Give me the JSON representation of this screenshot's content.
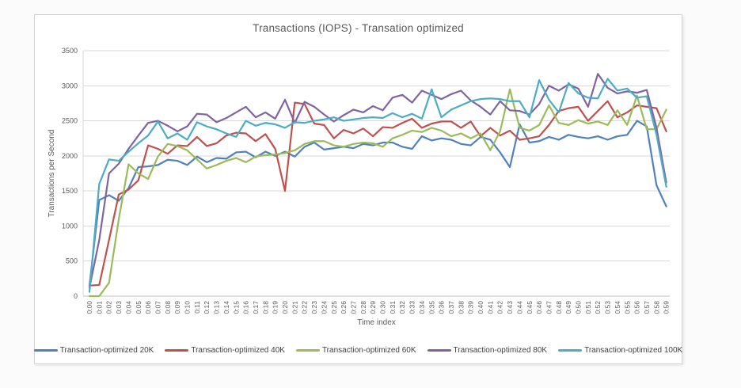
{
  "window": {
    "background": "#fbfbfb",
    "card_background": "#ffffff"
  },
  "palette": {
    "gridline": "#d9d9d9",
    "axis_line": "#bfbfbf",
    "text": "#595959",
    "legend_text": "#404040"
  },
  "chart_data": {
    "type": "line",
    "title": "Transactions (IOPS) - Transation optimized",
    "xlabel": "Time index",
    "ylabel": "Transactions per Second",
    "ylim": [
      0,
      3500
    ],
    "y_ticks": [
      0,
      500,
      1000,
      1500,
      2000,
      2500,
      3000,
      3500
    ],
    "grid": "horizontal-only",
    "legend_position": "bottom",
    "x_tick_rotation": -90,
    "categories": [
      "0:00",
      "0:01",
      "0:02",
      "0:03",
      "0:04",
      "0:05",
      "0:06",
      "0:07",
      "0:08",
      "0:09",
      "0:10",
      "0:11",
      "0:12",
      "0:13",
      "0:14",
      "0:15",
      "0:16",
      "0:17",
      "0:18",
      "0:19",
      "0:20",
      "0:21",
      "0:22",
      "0:23",
      "0:24",
      "0:25",
      "0:26",
      "0:27",
      "0:28",
      "0:29",
      "0:30",
      "0:31",
      "0:32",
      "0:33",
      "0:34",
      "0:35",
      "0:36",
      "0:37",
      "0:38",
      "0:39",
      "0:40",
      "0:41",
      "0:42",
      "0:43",
      "0:44",
      "0:45",
      "0:46",
      "0:47",
      "0:48",
      "0:49",
      "0:50",
      "0:51",
      "0:52",
      "0:53",
      "0:54",
      "0:55",
      "0:56",
      "0:57",
      "0:58",
      "0:59"
    ],
    "series": [
      {
        "name": "Transaction-optimized 20K",
        "color": "#4F81BD",
        "values": [
          150,
          1370,
          1440,
          1360,
          1540,
          1840,
          1850,
          1870,
          1945,
          1930,
          1870,
          1990,
          1910,
          1970,
          1960,
          2050,
          2060,
          1980,
          2060,
          2000,
          2060,
          1990,
          2130,
          2190,
          2090,
          2110,
          2130,
          2110,
          2170,
          2150,
          2190,
          2190,
          2130,
          2100,
          2280,
          2220,
          2250,
          2230,
          2170,
          2150,
          2270,
          2230,
          2050,
          1840,
          2450,
          2190,
          2210,
          2270,
          2230,
          2300,
          2270,
          2250,
          2280,
          2230,
          2280,
          2300,
          2500,
          2420,
          1580,
          1280
        ]
      },
      {
        "name": "Transaction-optimized 40K",
        "color": "#C0504D",
        "values": [
          150,
          160,
          800,
          1450,
          1520,
          1650,
          2150,
          2100,
          2030,
          2150,
          2140,
          2270,
          2140,
          2180,
          2290,
          2330,
          2320,
          2210,
          2310,
          2100,
          1500,
          2760,
          2740,
          2460,
          2440,
          2250,
          2370,
          2320,
          2390,
          2280,
          2410,
          2400,
          2470,
          2530,
          2400,
          2460,
          2490,
          2490,
          2400,
          2490,
          2280,
          2400,
          2290,
          2360,
          2230,
          2250,
          2280,
          2440,
          2640,
          2680,
          2700,
          2500,
          2640,
          2780,
          2550,
          2620,
          2720,
          2700,
          2680,
          2350
        ]
      },
      {
        "name": "Transaction-optimized 60K",
        "color": "#9BBB59",
        "values": [
          0,
          0,
          190,
          1100,
          1880,
          1750,
          1670,
          1990,
          2170,
          2140,
          2080,
          1950,
          1820,
          1870,
          1930,
          1970,
          1910,
          1990,
          2010,
          2020,
          2040,
          2080,
          2170,
          2210,
          2210,
          2150,
          2130,
          2170,
          2190,
          2180,
          2130,
          2250,
          2300,
          2360,
          2340,
          2400,
          2360,
          2280,
          2320,
          2250,
          2320,
          2080,
          2350,
          2950,
          2400,
          2360,
          2440,
          2720,
          2470,
          2440,
          2510,
          2460,
          2490,
          2440,
          2650,
          2440,
          2860,
          2380,
          2380,
          2660
        ]
      },
      {
        "name": "Transaction-optimized 80K",
        "color": "#8064A2",
        "values": [
          120,
          800,
          1750,
          1890,
          2100,
          2290,
          2470,
          2500,
          2430,
          2350,
          2420,
          2600,
          2590,
          2480,
          2540,
          2620,
          2700,
          2550,
          2620,
          2530,
          2800,
          2470,
          2770,
          2700,
          2590,
          2490,
          2580,
          2660,
          2620,
          2710,
          2650,
          2830,
          2870,
          2760,
          2930,
          2870,
          2810,
          2880,
          2930,
          2790,
          2700,
          2590,
          2780,
          2650,
          2640,
          2590,
          2740,
          3000,
          2930,
          3020,
          2960,
          2700,
          3170,
          2970,
          2890,
          2920,
          2900,
          2940,
          2400,
          1620
        ]
      },
      {
        "name": "Transaction-optimized 100K",
        "color": "#4BACC6",
        "values": [
          60,
          1600,
          1950,
          1930,
          2060,
          2180,
          2290,
          2490,
          2250,
          2320,
          2230,
          2480,
          2420,
          2380,
          2320,
          2270,
          2500,
          2430,
          2470,
          2450,
          2400,
          2480,
          2470,
          2500,
          2520,
          2550,
          2500,
          2520,
          2540,
          2550,
          2540,
          2610,
          2550,
          2600,
          2530,
          2950,
          2550,
          2660,
          2720,
          2780,
          2810,
          2820,
          2810,
          2780,
          2780,
          2550,
          3080,
          2800,
          2620,
          3040,
          2890,
          2830,
          2820,
          3100,
          2930,
          2960,
          2830,
          2850,
          2300,
          1560
        ]
      }
    ]
  }
}
